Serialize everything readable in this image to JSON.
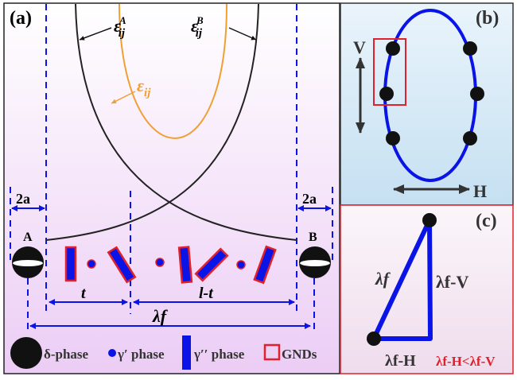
{
  "panels": {
    "a": {
      "label": "(a)"
    },
    "b": {
      "label": "(b)",
      "v_label": "V",
      "h_label": "H"
    },
    "c": {
      "label": "(c)",
      "hyp_label": "λf",
      "vert_label": "λf-V",
      "horiz_label": "λf-H",
      "relation": "λf-H<λf-V"
    }
  },
  "strain_labels": {
    "eps_a": "ε",
    "eps_a_sub": "ij",
    "eps_a_sup": "A",
    "eps_b": "ε",
    "eps_b_sub": "ij",
    "eps_b_sup": "B",
    "eps": "ε",
    "eps_sub": "ij"
  },
  "dims": {
    "two_a": "2a",
    "t": "t",
    "l_minus_t": "l-t",
    "lambda_f": "λf",
    "point_a": "A",
    "point_b": "B"
  },
  "legend": [
    {
      "label": "δ-phase"
    },
    {
      "label": "γ′ phase"
    },
    {
      "label": "γ′′ phase"
    },
    {
      "label": "GNDs"
    }
  ],
  "colors": {
    "blue": "#0a14e6",
    "red": "#e0202a",
    "orange": "#f0a030",
    "black": "#111111"
  }
}
